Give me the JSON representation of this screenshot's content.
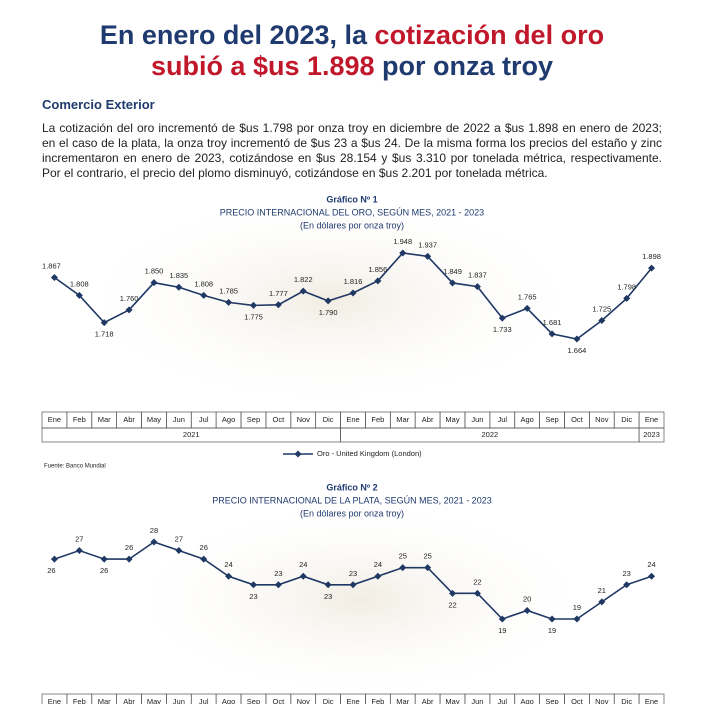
{
  "header": {
    "title_lines": [
      [
        {
          "text": "En enero del 2023, la ",
          "emphasis": false
        },
        {
          "text": "cotización del oro",
          "emphasis": true
        }
      ],
      [
        {
          "text": "subió a $us 1.898",
          "emphasis": true
        },
        {
          "text": " por onza troy",
          "emphasis": false
        }
      ]
    ]
  },
  "section": {
    "heading": "Comercio Exterior",
    "paragraph": "La cotización del oro incrementó de $us 1.798 por onza troy en diciembre de 2022 a $us 1.898 en enero de 2023; en el caso de la plata, la onza troy incrementó de $us 23 a $us 24. De la misma forma los precios del estaño y zinc incrementaron en enero de 2023, cotizándose en $us 28.154 y $us 3.310 por tonelada métrica, respectivamente. Por el contrario, el precio del plomo disminuyó, cotizándose en $us 2.201 por tonelada métrica."
  },
  "chart_data": [
    {
      "type": "line",
      "label": "Gráfico Nº 1",
      "title": "PRECIO INTERNACIONAL DEL ORO, SEGÚN MES, 2021 - 2023",
      "subtitle": "(En dólares por onza troy)",
      "categories": [
        "Ene",
        "Feb",
        "Mar",
        "Abr",
        "May",
        "Jun",
        "Jul",
        "Ago",
        "Sep",
        "Oct",
        "Nov",
        "Dic",
        "Ene",
        "Feb",
        "Mar",
        "Abr",
        "May",
        "Jun",
        "Jul",
        "Ago",
        "Sep",
        "Oct",
        "Nov",
        "Dic",
        "Ene"
      ],
      "year_groups": [
        {
          "label": "2021",
          "span": 12
        },
        {
          "label": "2022",
          "span": 12
        },
        {
          "label": "2023",
          "span": 1
        }
      ],
      "series": [
        {
          "name": "Oro - United Kingdom (London)",
          "color": "#1f3864",
          "values": [
            1867,
            1808,
            1718,
            1760,
            1850,
            1835,
            1808,
            1785,
            1775,
            1777,
            1822,
            1790,
            1816,
            1856,
            1948,
            1937,
            1849,
            1837,
            1733,
            1765,
            1681,
            1664,
            1725,
            1798,
            1898
          ],
          "value_labels": [
            "1.867",
            "1.808",
            "1.718",
            "1.760",
            "1.850",
            "1.835",
            "1.808",
            "1.785",
            "1.775",
            "1.777",
            "1.822",
            "1.790",
            "1.816",
            "1.856",
            "1.948",
            "1.937",
            "1.849",
            "1.837",
            "1.733",
            "1.765",
            "1.681",
            "1.664",
            "1.725",
            "1.798",
            "1.898"
          ]
        }
      ],
      "source": "Fuente: Banco Mundial"
    },
    {
      "type": "line",
      "label": "Gráfico Nº 2",
      "title": "PRECIO INTERNACIONAL DE LA PLATA, SEGÚN MES, 2021 - 2023",
      "subtitle": "(En dólares por onza troy)",
      "categories": [
        "Ene",
        "Feb",
        "Mar",
        "Abr",
        "May",
        "Jun",
        "Jul",
        "Ago",
        "Sep",
        "Oct",
        "Nov",
        "Dic",
        "Ene",
        "Feb",
        "Mar",
        "Abr",
        "May",
        "Jun",
        "Jul",
        "Ago",
        "Sep",
        "Oct",
        "Nov",
        "Dic",
        "Ene"
      ],
      "series": [
        {
          "color": "#1f3864",
          "values": [
            26,
            27,
            26,
            26,
            28,
            27,
            26,
            24,
            23,
            23,
            24,
            23,
            23,
            24,
            25,
            25,
            22,
            22,
            19,
            20,
            19,
            19,
            21,
            23,
            24
          ]
        }
      ]
    }
  ]
}
